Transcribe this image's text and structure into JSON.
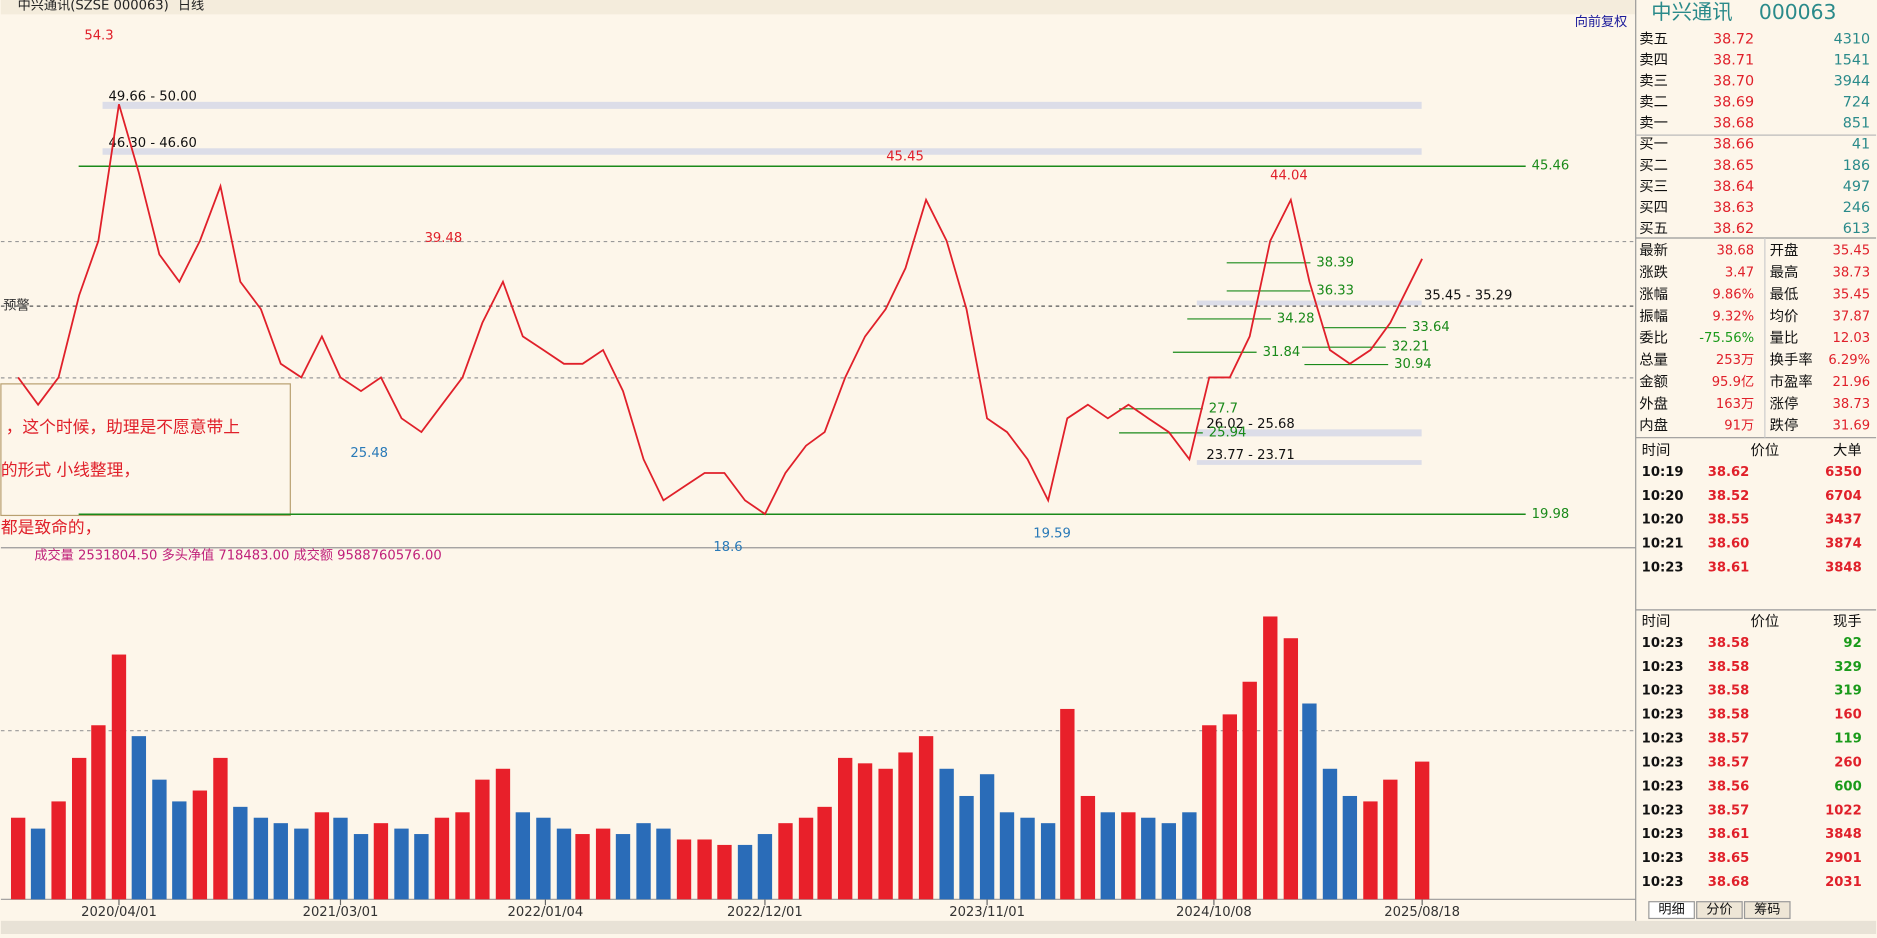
{
  "header": {
    "title": "中兴通讯(SZSE 000063)",
    "period": "日线",
    "restore": "向前复权",
    "alert": "预警"
  },
  "notes": [
    "，这个时候，助理是不愿意带上",
    "的形式 小线整理，",
    "都是致命的，"
  ],
  "chart_data": {
    "type": "line",
    "color": "#e0202a",
    "x": [
      "2019/11/01",
      "2019/12/01",
      "2020/01/01",
      "2020/02/01",
      "2020/03/01",
      "2020/04/01",
      "2020/05/01",
      "2020/06/01",
      "2020/07/01",
      "2020/08/01",
      "2020/09/01",
      "2020/10/01",
      "2020/11/01",
      "2020/12/01",
      "2021/01/01",
      "2021/02/01",
      "2021/03/01",
      "2021/04/01",
      "2021/05/01",
      "2021/06/01",
      "2021/07/01",
      "2021/08/01",
      "2021/09/01",
      "2021/10/01",
      "2021/11/01",
      "2021/12/01",
      "2022/01/01",
      "2022/02/01",
      "2022/03/01",
      "2022/04/01",
      "2022/05/01",
      "2022/06/01",
      "2022/07/01",
      "2022/08/01",
      "2022/09/01",
      "2022/10/01",
      "2022/11/01",
      "2022/12/01",
      "2023/01/01",
      "2023/02/01",
      "2023/03/01",
      "2023/04/01",
      "2023/05/01",
      "2023/06/01",
      "2023/07/01",
      "2023/08/01",
      "2023/09/01",
      "2023/10/01",
      "2023/11/01",
      "2023/12/01",
      "2024/01/01",
      "2024/02/01",
      "2024/03/01",
      "2024/04/01",
      "2024/05/01",
      "2024/06/01",
      "2024/07/01",
      "2024/08/01",
      "2024/09/01",
      "2024/10/01",
      "2024/11/01",
      "2024/12/01",
      "2025/01/01",
      "2025/02/01",
      "2025/03/01",
      "2025/04/01",
      "2025/05/01",
      "2025/06/01",
      "2025/07/01",
      "2025/08/18"
    ],
    "values": [
      30,
      28,
      30,
      36,
      40,
      50,
      45,
      39,
      37,
      40,
      44,
      37,
      35,
      31,
      30,
      33,
      30,
      29,
      30,
      27,
      26,
      28,
      30,
      34,
      37,
      33,
      32,
      31,
      31,
      32,
      29,
      24,
      21,
      22,
      23,
      23,
      21,
      20,
      23,
      25,
      26,
      30,
      33,
      35,
      38,
      43,
      40,
      35,
      27,
      26,
      24,
      21,
      27,
      28,
      27,
      28,
      27,
      26,
      24,
      30,
      30,
      33,
      40,
      43,
      37,
      32,
      31,
      32,
      34,
      38.68
    ],
    "volumes": [
      1500000,
      1300000,
      1800000,
      2600000,
      3200000,
      4500000,
      3000000,
      2200000,
      1800000,
      2000000,
      2600000,
      1700000,
      1500000,
      1400000,
      1300000,
      1600000,
      1500000,
      1200000,
      1400000,
      1300000,
      1200000,
      1500000,
      1600000,
      2200000,
      2400000,
      1600000,
      1500000,
      1300000,
      1200000,
      1300000,
      1200000,
      1400000,
      1300000,
      1100000,
      1100000,
      1000000,
      1000000,
      1200000,
      1400000,
      1500000,
      1700000,
      2600000,
      2500000,
      2400000,
      2700000,
      3000000,
      2400000,
      1900000,
      2300000,
      1600000,
      1500000,
      1400000,
      3500000,
      1900000,
      1600000,
      1600000,
      1500000,
      1400000,
      1600000,
      3200000,
      3400000,
      4000000,
      5200000,
      4800000,
      3600000,
      2400000,
      1900000,
      1800000,
      2200000,
      2531804.5
    ],
    "xlim": [
      "2019/10/06",
      "2026/07/06"
    ],
    "ylim": [
      17.53,
      56.58
    ],
    "volume_ylim": [
      0,
      6200000
    ],
    "xticks": [
      "2020/04/01",
      "2021/03/01",
      "2022/01/04",
      "2022/12/01",
      "2023/11/01",
      "2024/10/08",
      "2025/08/18"
    ],
    "peaks": [
      54.3,
      45.45,
      39.48,
      25.48,
      18.6,
      19.59,
      44.04
    ],
    "levels": [
      45.46,
      19.98
    ],
    "bands": [
      {
        "low": 49.66,
        "high": 50.0,
        "label": "49.66 - 50.00"
      },
      {
        "low": 46.3,
        "high": 46.6,
        "label": "46.30 - 46.60"
      },
      {
        "low": 35.29,
        "high": 35.45,
        "label": "35.45 - 35.29"
      },
      {
        "low": 25.68,
        "high": 26.02,
        "label": "26.02 - 25.68"
      },
      {
        "low": 23.71,
        "high": 23.77,
        "label": "23.77 - 23.71"
      }
    ],
    "marks": [
      38.39,
      36.33,
      34.28,
      31.84,
      33.64,
      32.21,
      30.94,
      27.7,
      25.94
    ],
    "indicator": "成交量 2531804.50  多头净值 718483.00  成交额 9588760576.00"
  },
  "quote": {
    "name": "中兴通讯",
    "code": "000063",
    "book": [
      [
        "卖五",
        "38.72",
        "4310"
      ],
      [
        "卖四",
        "38.71",
        "1541"
      ],
      [
        "卖三",
        "38.70",
        "3944"
      ],
      [
        "卖二",
        "38.69",
        "724"
      ],
      [
        "卖一",
        "38.68",
        "851"
      ],
      [
        "买一",
        "38.66",
        "41"
      ],
      [
        "买二",
        "38.65",
        "186"
      ],
      [
        "买三",
        "38.64",
        "497"
      ],
      [
        "买四",
        "38.63",
        "246"
      ],
      [
        "买五",
        "38.62",
        "613"
      ]
    ],
    "stats": [
      [
        "最新",
        "38.68",
        "开盘",
        "35.45"
      ],
      [
        "涨跌",
        "3.47",
        "最高",
        "38.73"
      ],
      [
        "涨幅",
        "9.86%",
        "最低",
        "35.45"
      ],
      [
        "振幅",
        "9.32%",
        "均价",
        "37.87"
      ],
      [
        "委比",
        "-75.56%",
        "量比",
        "12.03"
      ],
      [
        "总量",
        "253万",
        "换手率",
        "6.29%"
      ],
      [
        "金额",
        "95.9亿",
        "市盈率",
        "21.96"
      ],
      [
        "外盘",
        "163万",
        "涨停",
        "38.73"
      ],
      [
        "内盘",
        "91万",
        "跌停",
        "31.69"
      ]
    ],
    "big_head": [
      "时间",
      "价位",
      "大单"
    ],
    "big": [
      [
        "10:19",
        "38.62",
        "6350"
      ],
      [
        "10:20",
        "38.52",
        "6704"
      ],
      [
        "10:20",
        "38.55",
        "3437"
      ],
      [
        "10:21",
        "38.60",
        "3874"
      ],
      [
        "10:23",
        "38.61",
        "3848"
      ]
    ],
    "tick_head": [
      "时间",
      "价位",
      "现手"
    ],
    "ticks": [
      [
        "10:23",
        "38.58",
        "92"
      ],
      [
        "10:23",
        "38.58",
        "329"
      ],
      [
        "10:23",
        "38.58",
        "319"
      ],
      [
        "10:23",
        "38.58",
        "160"
      ],
      [
        "10:23",
        "38.57",
        "119"
      ],
      [
        "10:23",
        "38.57",
        "260"
      ],
      [
        "10:23",
        "38.56",
        "600"
      ],
      [
        "10:23",
        "38.57",
        "1022"
      ],
      [
        "10:23",
        "38.61",
        "3848"
      ],
      [
        "10:23",
        "38.65",
        "2901"
      ],
      [
        "10:23",
        "38.68",
        "2031"
      ]
    ],
    "tick_colors": [
      "#1a9a1a",
      "#1a9a1a",
      "#1a9a1a",
      "#e0202a",
      "#1a9a1a",
      "#e0202a",
      "#1a9a1a",
      "#e0202a",
      "#e0202a",
      "#e0202a",
      "#e0202a"
    ],
    "tabs": [
      "明细",
      "分价",
      "筹码"
    ]
  }
}
